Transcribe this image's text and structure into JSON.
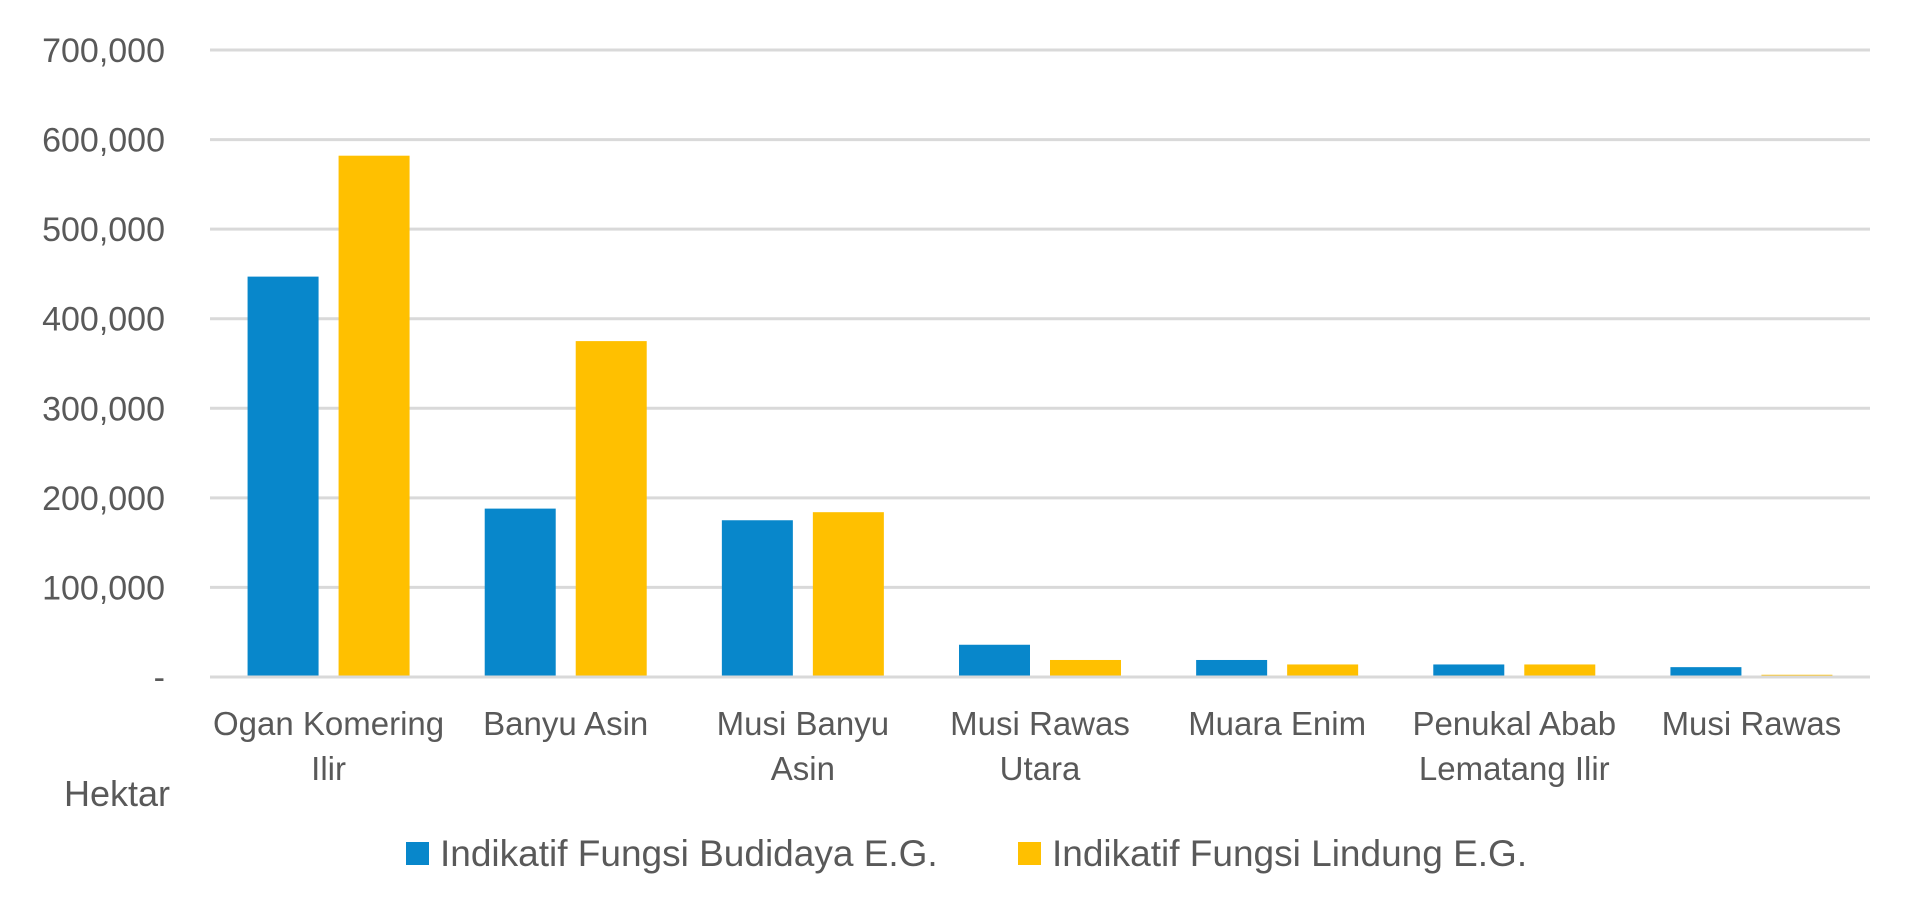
{
  "chart_data": {
    "type": "bar",
    "title": "",
    "xlabel": "",
    "ylabel": "Hektar",
    "ylim": [
      0,
      700000
    ],
    "yticks": [
      0,
      100000,
      200000,
      300000,
      400000,
      500000,
      600000,
      700000
    ],
    "ytick_labels": [
      "-",
      "100,000",
      "200,000",
      "300,000",
      "400,000",
      "500,000",
      "600,000",
      "700,000"
    ],
    "grid": true,
    "legend_position": "bottom",
    "categories": [
      [
        "Ogan Komering",
        "Ilir"
      ],
      [
        "Banyu Asin"
      ],
      [
        "Musi Banyu",
        "Asin"
      ],
      [
        "Musi Rawas",
        "Utara"
      ],
      [
        "Muara Enim"
      ],
      [
        "Penukal Abab",
        "Lematang Ilir"
      ],
      [
        "Musi Rawas"
      ]
    ],
    "series": [
      {
        "name": "Indikatif Fungsi Budidaya E.G.",
        "color": "#0887CB",
        "values": [
          447000,
          188000,
          175000,
          36000,
          19000,
          14000,
          11000
        ]
      },
      {
        "name": "Indikatif Fungsi Lindung E.G.",
        "color": "#FFC000",
        "values": [
          582000,
          375000,
          184000,
          19000,
          14000,
          14000,
          2500
        ]
      }
    ]
  }
}
